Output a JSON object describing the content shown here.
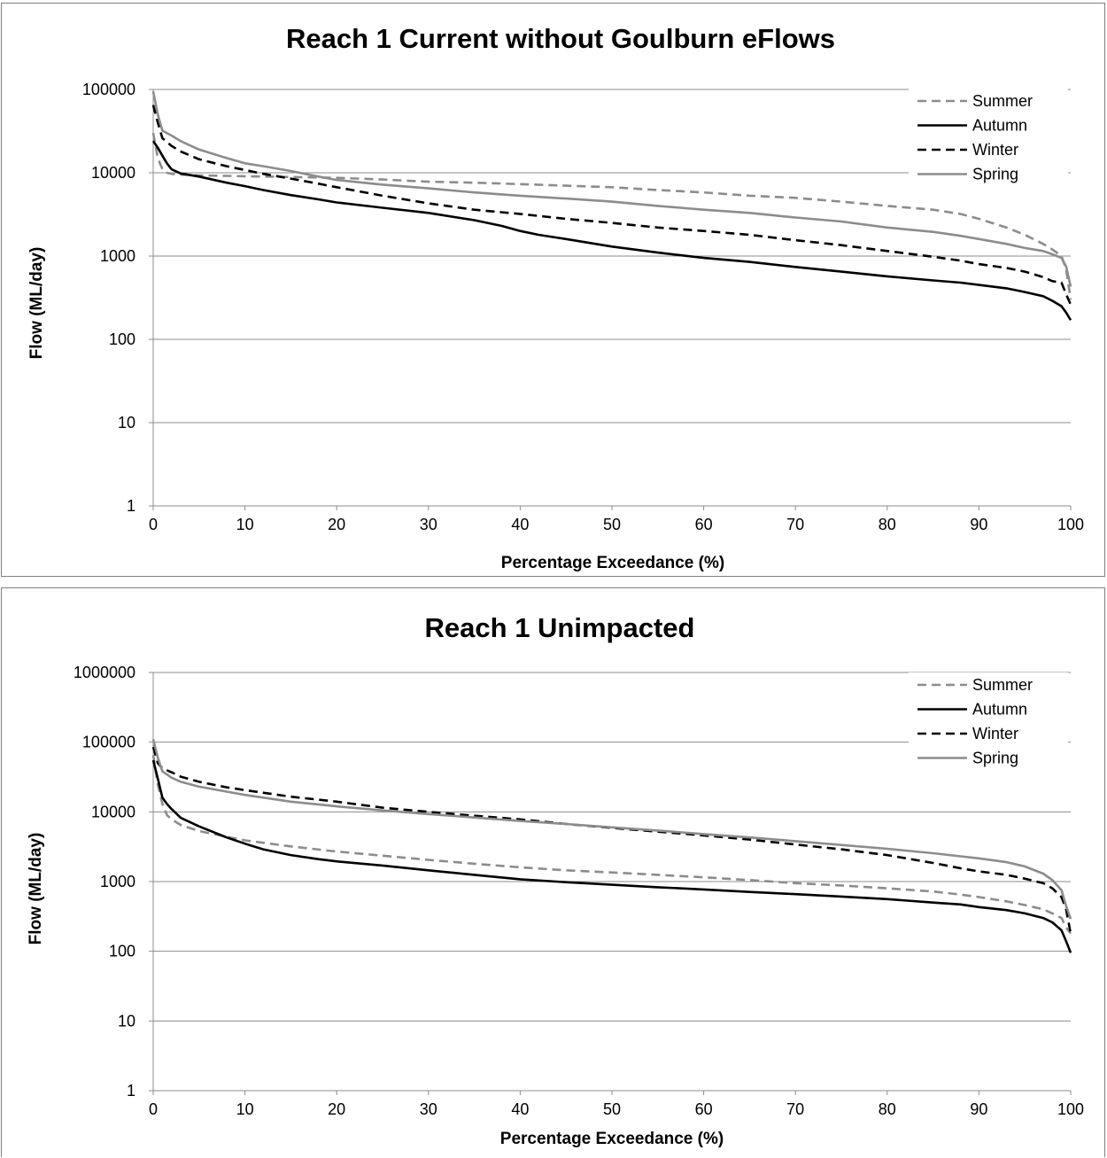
{
  "chart_data": [
    {
      "type": "line",
      "title": "Reach 1 Current without Goulburn eFlows",
      "xlabel": "Percentage Exceedance (%)",
      "ylabel": "Flow (ML/day)",
      "xlim": [
        0,
        100
      ],
      "ylim": [
        1,
        100000
      ],
      "yscale": "log",
      "grid": true,
      "legend_position": "top-right",
      "x_ticks": [
        "0",
        "10",
        "20",
        "30",
        "40",
        "50",
        "60",
        "70",
        "80",
        "90",
        "100"
      ],
      "y_ticks": [
        "1",
        "10",
        "100",
        "1000",
        "10000",
        "100000"
      ],
      "series": [
        {
          "name": "Summer",
          "color": "#8c8c8c",
          "dashed": true,
          "x": [
            0,
            0.5,
            1,
            1.5,
            2,
            3,
            5,
            10,
            15,
            20,
            25,
            30,
            35,
            40,
            45,
            50,
            55,
            60,
            65,
            70,
            75,
            80,
            85,
            88,
            90,
            93,
            95,
            97,
            98,
            99,
            99.5,
            100
          ],
          "y": [
            30000,
            15000,
            11000,
            10000,
            9700,
            9500,
            9300,
            9100,
            8900,
            8700,
            8300,
            7800,
            7600,
            7300,
            7000,
            6700,
            6200,
            5800,
            5300,
            5000,
            4500,
            4000,
            3600,
            3200,
            2800,
            2200,
            1800,
            1400,
            1200,
            1000,
            700,
            300
          ]
        },
        {
          "name": "Autumn",
          "color": "#000000",
          "dashed": false,
          "x": [
            0,
            0.5,
            1,
            1.5,
            2,
            3,
            5,
            8,
            10,
            12,
            15,
            18,
            20,
            25,
            30,
            35,
            38,
            40,
            42,
            45,
            50,
            55,
            60,
            65,
            70,
            75,
            80,
            85,
            88,
            90,
            93,
            95,
            97,
            98,
            99,
            99.5,
            100
          ],
          "y": [
            24000,
            20000,
            16000,
            13000,
            11000,
            9800,
            9000,
            7600,
            6900,
            6200,
            5400,
            4800,
            4400,
            3800,
            3300,
            2700,
            2300,
            2000,
            1800,
            1600,
            1300,
            1100,
            950,
            850,
            740,
            650,
            570,
            510,
            480,
            450,
            410,
            370,
            330,
            290,
            250,
            210,
            170
          ]
        },
        {
          "name": "Winter",
          "color": "#000000",
          "dashed": true,
          "x": [
            0,
            0.5,
            1,
            2,
            3,
            5,
            8,
            10,
            12,
            15,
            18,
            20,
            25,
            30,
            35,
            40,
            45,
            50,
            55,
            60,
            65,
            70,
            75,
            80,
            85,
            88,
            90,
            93,
            95,
            97,
            98,
            99,
            99.5,
            100
          ],
          "y": [
            65000,
            40000,
            26000,
            21000,
            18000,
            14500,
            12000,
            10800,
            9700,
            8500,
            7400,
            6700,
            5300,
            4300,
            3600,
            3200,
            2800,
            2500,
            2200,
            2000,
            1800,
            1550,
            1350,
            1150,
            980,
            880,
            800,
            720,
            650,
            560,
            500,
            480,
            350,
            260
          ]
        },
        {
          "name": "Spring",
          "color": "#8c8c8c",
          "dashed": false,
          "x": [
            0,
            0.5,
            1,
            2,
            3,
            5,
            8,
            10,
            12,
            15,
            18,
            20,
            25,
            30,
            35,
            40,
            45,
            50,
            55,
            60,
            65,
            70,
            75,
            80,
            85,
            88,
            90,
            93,
            95,
            97,
            98,
            99,
            99.5,
            100
          ],
          "y": [
            95000,
            50000,
            32000,
            28000,
            24000,
            19000,
            15000,
            13000,
            12000,
            10500,
            9000,
            8200,
            7200,
            6500,
            5800,
            5300,
            4900,
            4500,
            4000,
            3600,
            3300,
            2900,
            2600,
            2200,
            1950,
            1750,
            1600,
            1400,
            1250,
            1150,
            1050,
            950,
            750,
            430
          ]
        }
      ]
    },
    {
      "type": "line",
      "title": "Reach 1 Unimpacted",
      "xlabel": "Percentage Exceedance (%)",
      "ylabel": "Flow (ML/day)",
      "xlim": [
        0,
        100
      ],
      "ylim": [
        1,
        1000000
      ],
      "yscale": "log",
      "grid": true,
      "legend_position": "top-right",
      "x_ticks": [
        "0",
        "10",
        "20",
        "30",
        "40",
        "50",
        "60",
        "70",
        "80",
        "90",
        "100"
      ],
      "y_ticks": [
        "1",
        "10",
        "100",
        "1000",
        "10000",
        "100000",
        "1000000"
      ],
      "series": [
        {
          "name": "Summer",
          "color": "#8c8c8c",
          "dashed": true,
          "x": [
            0,
            0.5,
            1,
            1.5,
            2,
            3,
            5,
            8,
            10,
            15,
            20,
            25,
            30,
            35,
            40,
            45,
            50,
            55,
            60,
            65,
            70,
            75,
            80,
            85,
            88,
            90,
            93,
            95,
            97,
            98,
            99,
            99.5,
            100
          ],
          "y": [
            65000,
            25000,
            13000,
            9000,
            7800,
            6500,
            5300,
            4400,
            3900,
            3200,
            2700,
            2350,
            2050,
            1800,
            1600,
            1450,
            1350,
            1250,
            1150,
            1050,
            950,
            880,
            800,
            720,
            650,
            600,
            520,
            460,
            400,
            350,
            300,
            220,
            180
          ]
        },
        {
          "name": "Autumn",
          "color": "#000000",
          "dashed": false,
          "x": [
            0,
            0.5,
            1,
            1.5,
            2,
            3,
            5,
            8,
            10,
            12,
            15,
            18,
            20,
            25,
            30,
            35,
            40,
            45,
            50,
            55,
            60,
            65,
            70,
            75,
            80,
            85,
            88,
            90,
            93,
            95,
            97,
            98,
            99,
            99.5,
            100
          ],
          "y": [
            55000,
            30000,
            16000,
            13000,
            11000,
            8200,
            6200,
            4300,
            3500,
            2900,
            2400,
            2100,
            1950,
            1700,
            1450,
            1250,
            1080,
            980,
            900,
            830,
            770,
            710,
            660,
            610,
            560,
            500,
            470,
            430,
            390,
            350,
            300,
            260,
            200,
            140,
            95
          ]
        },
        {
          "name": "Winter",
          "color": "#000000",
          "dashed": true,
          "x": [
            0,
            0.5,
            1,
            2,
            3,
            5,
            8,
            10,
            15,
            20,
            25,
            30,
            35,
            40,
            45,
            50,
            55,
            60,
            65,
            70,
            75,
            80,
            85,
            88,
            90,
            93,
            95,
            97,
            98,
            99,
            99.5,
            100
          ],
          "y": [
            85000,
            50000,
            42000,
            37000,
            32000,
            27000,
            22500,
            20500,
            16500,
            14000,
            11500,
            10000,
            8800,
            7800,
            6700,
            5900,
            5200,
            4600,
            4000,
            3400,
            2900,
            2400,
            1850,
            1550,
            1400,
            1250,
            1100,
            950,
            800,
            600,
            400,
            180
          ]
        },
        {
          "name": "Spring",
          "color": "#8c8c8c",
          "dashed": false,
          "x": [
            0,
            0.5,
            1,
            2,
            3,
            5,
            8,
            10,
            15,
            20,
            25,
            30,
            35,
            40,
            45,
            50,
            55,
            60,
            65,
            70,
            75,
            80,
            85,
            88,
            90,
            93,
            95,
            97,
            98,
            99,
            99.5,
            100
          ],
          "y": [
            110000,
            60000,
            38000,
            31000,
            27000,
            23000,
            19500,
            17500,
            14000,
            12000,
            10500,
            9300,
            8300,
            7400,
            6700,
            6000,
            5400,
            4800,
            4300,
            3800,
            3350,
            2950,
            2550,
            2300,
            2150,
            1900,
            1650,
            1300,
            1050,
            750,
            450,
            290
          ]
        }
      ]
    }
  ]
}
